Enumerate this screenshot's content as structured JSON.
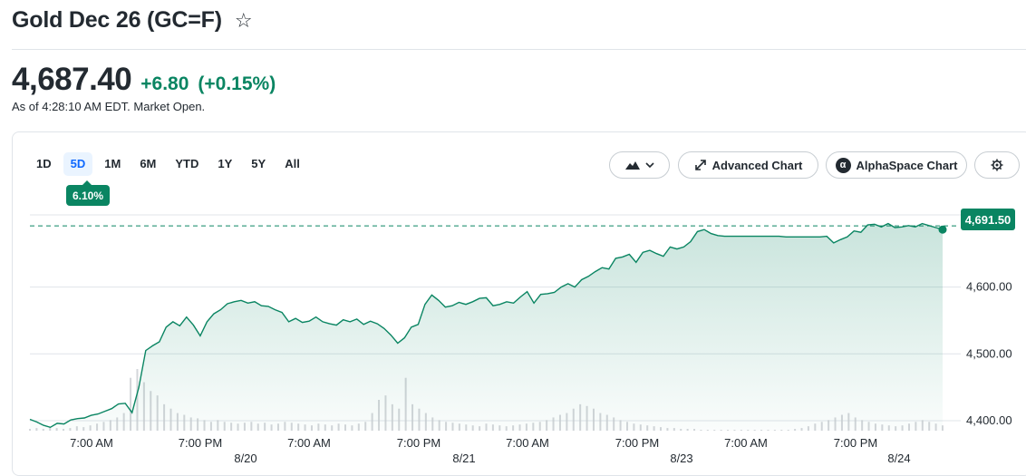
{
  "quote": {
    "title": "Gold Dec 26 (GC=F)",
    "price": "4,687.40",
    "change": "+6.80",
    "change_pct": "(+0.15%)",
    "as_of": "As of 4:28:10 AM EDT. Market Open."
  },
  "ranges": [
    "1D",
    "5D",
    "1M",
    "6M",
    "YTD",
    "1Y",
    "5Y",
    "All"
  ],
  "active_range": "5D",
  "range_change_badge": "6.10%",
  "toolbar": {
    "advanced_chart_label": "Advanced Chart",
    "alphaspace_label": "AlphaSpace Chart"
  },
  "icons": {
    "watchlist": "star-icon",
    "chart_type": "mountain-chart-icon",
    "advanced": "expand-arrows-icon",
    "alphaspace": "alpha-logo-icon",
    "settings": "gear-icon"
  },
  "colors": {
    "positive": "#0a8562",
    "line": "#0a8562",
    "active_range": "#0f69ff",
    "grid": "#e0e4e9"
  },
  "chart_data": {
    "type": "area",
    "ylim": [
      4385,
      4708
    ],
    "y_ticks": [
      {
        "value": 4400,
        "label": "4,400.00"
      },
      {
        "value": 4500,
        "label": "4,500.00"
      },
      {
        "value": 4600,
        "label": "4,600.00"
      }
    ],
    "previous_close": 4691.5,
    "last_price_label": "4,691.50",
    "x_time_labels": [
      "7:00 AM",
      "7:00 PM",
      "7:00 AM",
      "7:00 PM",
      "7:00 AM",
      "7:00 PM",
      "7:00 AM",
      "7:00 PM"
    ],
    "x_date_labels": [
      "8/20",
      "8/21",
      "8/23",
      "8/24"
    ],
    "series": [
      {
        "values": [
          4402,
          4398,
          4393,
          4390,
          4396,
          4395,
          4401,
          4403,
          4404,
          4408,
          4410,
          4414,
          4418,
          4425,
          4426,
          4412,
          4450,
          4505,
          4512,
          4518,
          4540,
          4548,
          4542,
          4555,
          4543,
          4527,
          4548,
          4560,
          4566,
          4575,
          4578,
          4580,
          4576,
          4578,
          4572,
          4571,
          4566,
          4562,
          4548,
          4553,
          4547,
          4549,
          4555,
          4548,
          4545,
          4543,
          4551,
          4548,
          4552,
          4544,
          4549,
          4545,
          4538,
          4528,
          4516,
          4524,
          4540,
          4544,
          4574,
          4588,
          4580,
          4570,
          4572,
          4577,
          4574,
          4578,
          4583,
          4584,
          4572,
          4574,
          4578,
          4576,
          4585,
          4593,
          4576,
          4589,
          4590,
          4592,
          4600,
          4605,
          4600,
          4611,
          4616,
          4623,
          4629,
          4627,
          4643,
          4645,
          4649,
          4637,
          4652,
          4655,
          4650,
          4646,
          4660,
          4657,
          4660,
          4668,
          4683,
          4686,
          4680,
          4677,
          4676,
          4676,
          4676,
          4676,
          4676,
          4676,
          4676,
          4676,
          4676,
          4675,
          4675,
          4675,
          4675,
          4675,
          4675,
          4676,
          4666,
          4671,
          4675,
          4684,
          4682,
          4693,
          4694,
          4690,
          4695,
          4689,
          4690,
          4692,
          4690,
          4695,
          4692,
          4689,
          4686
        ]
      }
    ],
    "volume": [
      2,
      3,
      2,
      4,
      3,
      2,
      3,
      5,
      4,
      6,
      8,
      10,
      12,
      15,
      20,
      60,
      70,
      55,
      45,
      40,
      30,
      25,
      20,
      18,
      15,
      14,
      12,
      10,
      12,
      10,
      9,
      8,
      9,
      10,
      8,
      9,
      7,
      8,
      10,
      9,
      8,
      7,
      6,
      8,
      7,
      6,
      8,
      7,
      6,
      8,
      10,
      20,
      35,
      40,
      30,
      25,
      60,
      30,
      25,
      20,
      15,
      12,
      10,
      9,
      8,
      7,
      6,
      5,
      8,
      7,
      6,
      5,
      6,
      7,
      8,
      9,
      10,
      12,
      15,
      18,
      20,
      25,
      30,
      28,
      25,
      20,
      18,
      15,
      12,
      10,
      8,
      7,
      6,
      5,
      4,
      3,
      3,
      2,
      2,
      2,
      1,
      1,
      1,
      1,
      1,
      1,
      1,
      1,
      1,
      1,
      1,
      1,
      1,
      1,
      2,
      3,
      5,
      8,
      10,
      12,
      15,
      18,
      20,
      15,
      12,
      10,
      8,
      7,
      6,
      5,
      6,
      8,
      10,
      12,
      10,
      8,
      6
    ]
  }
}
